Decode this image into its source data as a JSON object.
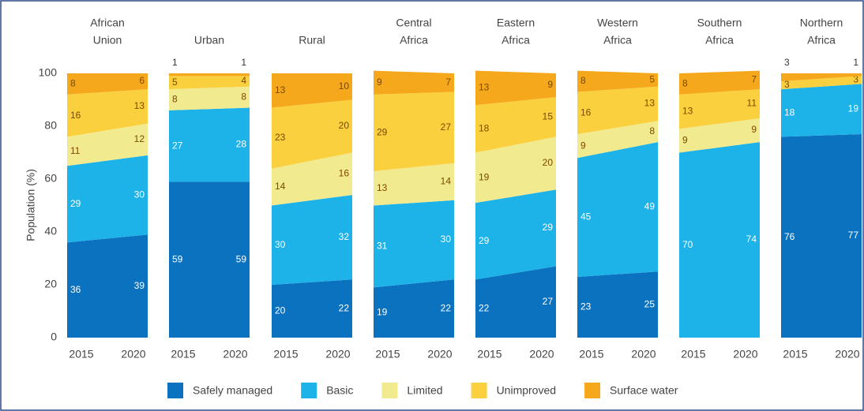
{
  "chart_data": {
    "type": "stacked_area_panels",
    "ylabel": "Population (%)",
    "ylim": [
      0,
      100
    ],
    "yticks": [
      0,
      20,
      40,
      60,
      80,
      100
    ],
    "x": [
      "2015",
      "2020"
    ],
    "series": [
      {
        "name": "Safely managed",
        "color": "#0b72c0"
      },
      {
        "name": "Basic",
        "color": "#1db2e8"
      },
      {
        "name": "Limited",
        "color": "#f2ea8e"
      },
      {
        "name": "Unimproved",
        "color": "#fbd03e"
      },
      {
        "name": "Surface water",
        "color": "#f5a81c"
      }
    ],
    "panels": [
      {
        "title": [
          "African",
          "Union"
        ],
        "values": [
          [
            36,
            39
          ],
          [
            29,
            30
          ],
          [
            11,
            12
          ],
          [
            16,
            13
          ],
          [
            8,
            6
          ]
        ]
      },
      {
        "title": [
          "Urban"
        ],
        "values": [
          [
            59,
            59
          ],
          [
            27,
            28
          ],
          [
            8,
            8
          ],
          [
            5,
            4
          ],
          [
            1,
            1
          ]
        ]
      },
      {
        "title": [
          "Rural"
        ],
        "values": [
          [
            20,
            22
          ],
          [
            30,
            32
          ],
          [
            14,
            16
          ],
          [
            23,
            20
          ],
          [
            13,
            10
          ]
        ]
      },
      {
        "title": [
          "Central",
          "Africa"
        ],
        "values": [
          [
            19,
            22
          ],
          [
            31,
            30
          ],
          [
            13,
            14
          ],
          [
            29,
            27
          ],
          [
            9,
            7
          ]
        ]
      },
      {
        "title": [
          "Eastern",
          "Africa"
        ],
        "values": [
          [
            22,
            27
          ],
          [
            29,
            29
          ],
          [
            19,
            20
          ],
          [
            18,
            15
          ],
          [
            13,
            9
          ]
        ]
      },
      {
        "title": [
          "Western",
          "Africa"
        ],
        "values": [
          [
            23,
            25
          ],
          [
            45,
            49
          ],
          [
            9,
            8
          ],
          [
            16,
            13
          ],
          [
            8,
            5
          ]
        ]
      },
      {
        "title": [
          "Southern",
          "Africa"
        ],
        "values": [
          [
            null,
            null
          ],
          [
            70,
            74
          ],
          [
            9,
            9
          ],
          [
            13,
            11
          ],
          [
            8,
            7
          ]
        ]
      },
      {
        "title": [
          "Northern",
          "Africa"
        ],
        "values": [
          [
            76,
            77
          ],
          [
            18,
            19
          ],
          [
            null,
            null
          ],
          [
            3,
            3
          ],
          [
            3,
            1
          ]
        ]
      }
    ]
  }
}
